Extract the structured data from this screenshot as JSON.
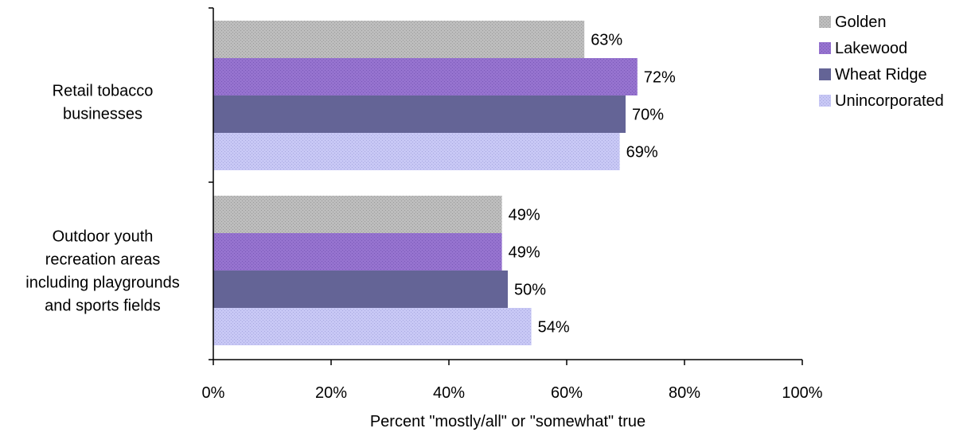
{
  "chart_data": {
    "type": "bar",
    "orientation": "horizontal",
    "title": "",
    "xlabel": "Percent \"mostly/all\" or \"somewhat\" true",
    "ylabel": "",
    "xlim": [
      0,
      100
    ],
    "x_ticks": [
      0,
      20,
      40,
      60,
      80,
      100
    ],
    "x_tick_labels": [
      "0%",
      "20%",
      "40%",
      "60%",
      "80%",
      "100%"
    ],
    "categories": [
      {
        "lines": [
          "Retail tobacco",
          "businesses"
        ]
      },
      {
        "lines": [
          "Outdoor youth",
          "recreation areas",
          "including playgrounds",
          "and sports fields"
        ]
      }
    ],
    "series": [
      {
        "name": "Golden",
        "values": [
          63,
          49
        ],
        "data_labels": [
          "63%",
          "49%"
        ],
        "color": "#bdbdbd",
        "dot_color": "#8c8c8c"
      },
      {
        "name": "Lakewood",
        "values": [
          72,
          49
        ],
        "data_labels": [
          "72%",
          "49%"
        ],
        "color": "#9673cf",
        "dot_color": "#6e4fae"
      },
      {
        "name": "Wheat Ridge",
        "values": [
          70,
          50
        ],
        "data_labels": [
          "70%",
          "50%"
        ],
        "color": "#646496",
        "dot_color": "#646496"
      },
      {
        "name": "Unincorporated",
        "values": [
          69,
          54
        ],
        "data_labels": [
          "69%",
          "54%"
        ],
        "color": "#c8c8f5",
        "dot_color": "#9a9ad8"
      }
    ],
    "legend_position": "top-right",
    "grid": false
  }
}
